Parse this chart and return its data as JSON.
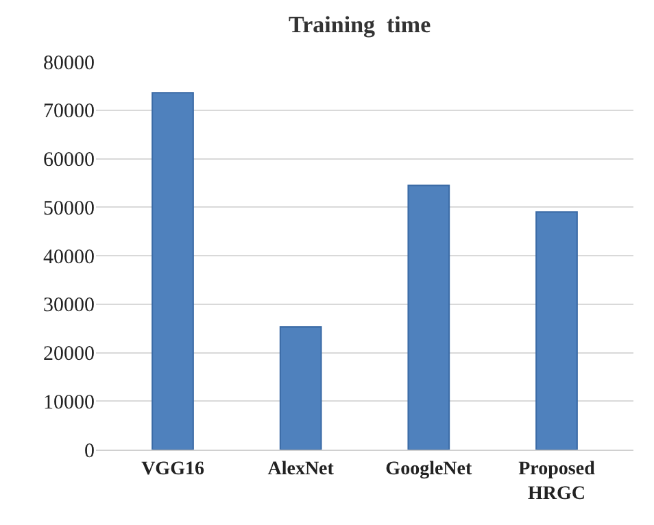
{
  "chart_data": {
    "type": "bar",
    "title": "Training  time",
    "categories": [
      "VGG16",
      "AlexNet",
      "GoogleNet",
      "Proposed\nHRGC"
    ],
    "values": [
      73600,
      25300,
      54500,
      49000
    ],
    "color": "#4f81bd",
    "ylim": [
      0,
      80000
    ],
    "yticks": [
      0,
      10000,
      20000,
      30000,
      40000,
      50000,
      60000,
      70000,
      80000
    ],
    "grid": "y"
  }
}
